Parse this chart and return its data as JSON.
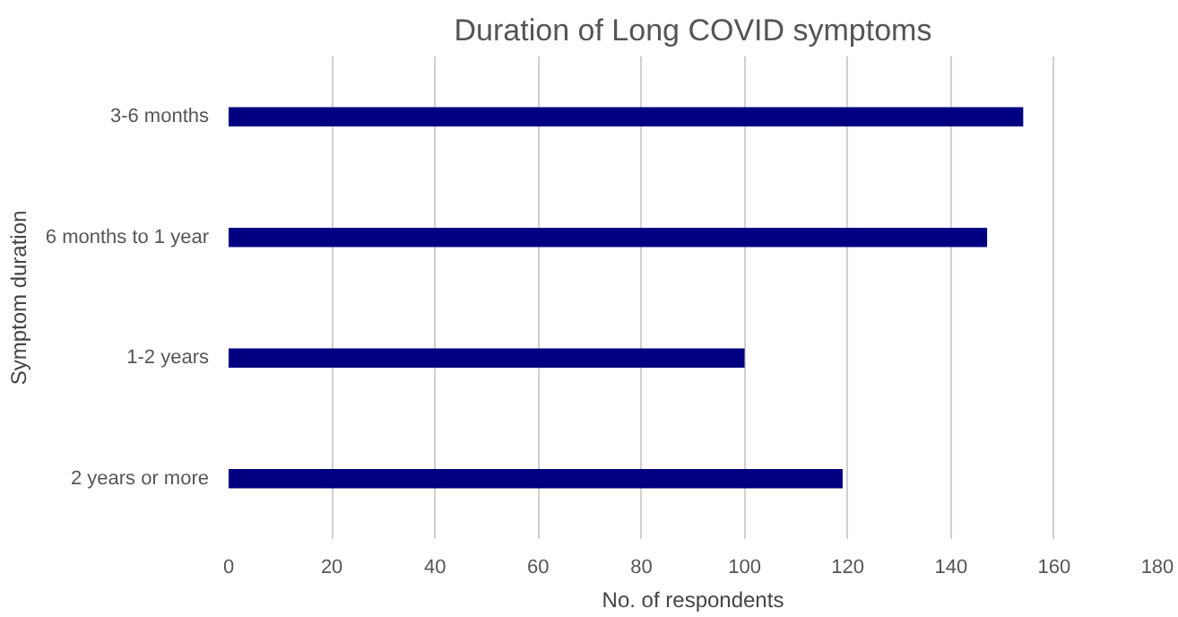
{
  "chart_data": {
    "type": "bar",
    "orientation": "horizontal",
    "title": "Duration of Long COVID symptoms",
    "xlabel": "No. of respondents",
    "ylabel": "Symptom duration",
    "categories": [
      "3-6 months",
      "6 months to 1 year",
      "1-2 years",
      "2 years or more"
    ],
    "values": [
      154,
      147,
      100,
      119
    ],
    "color": "#000080",
    "xlim": [
      0,
      180
    ],
    "xticks": [
      0,
      20,
      40,
      60,
      80,
      100,
      120,
      140,
      160,
      180
    ],
    "grid": "x"
  }
}
